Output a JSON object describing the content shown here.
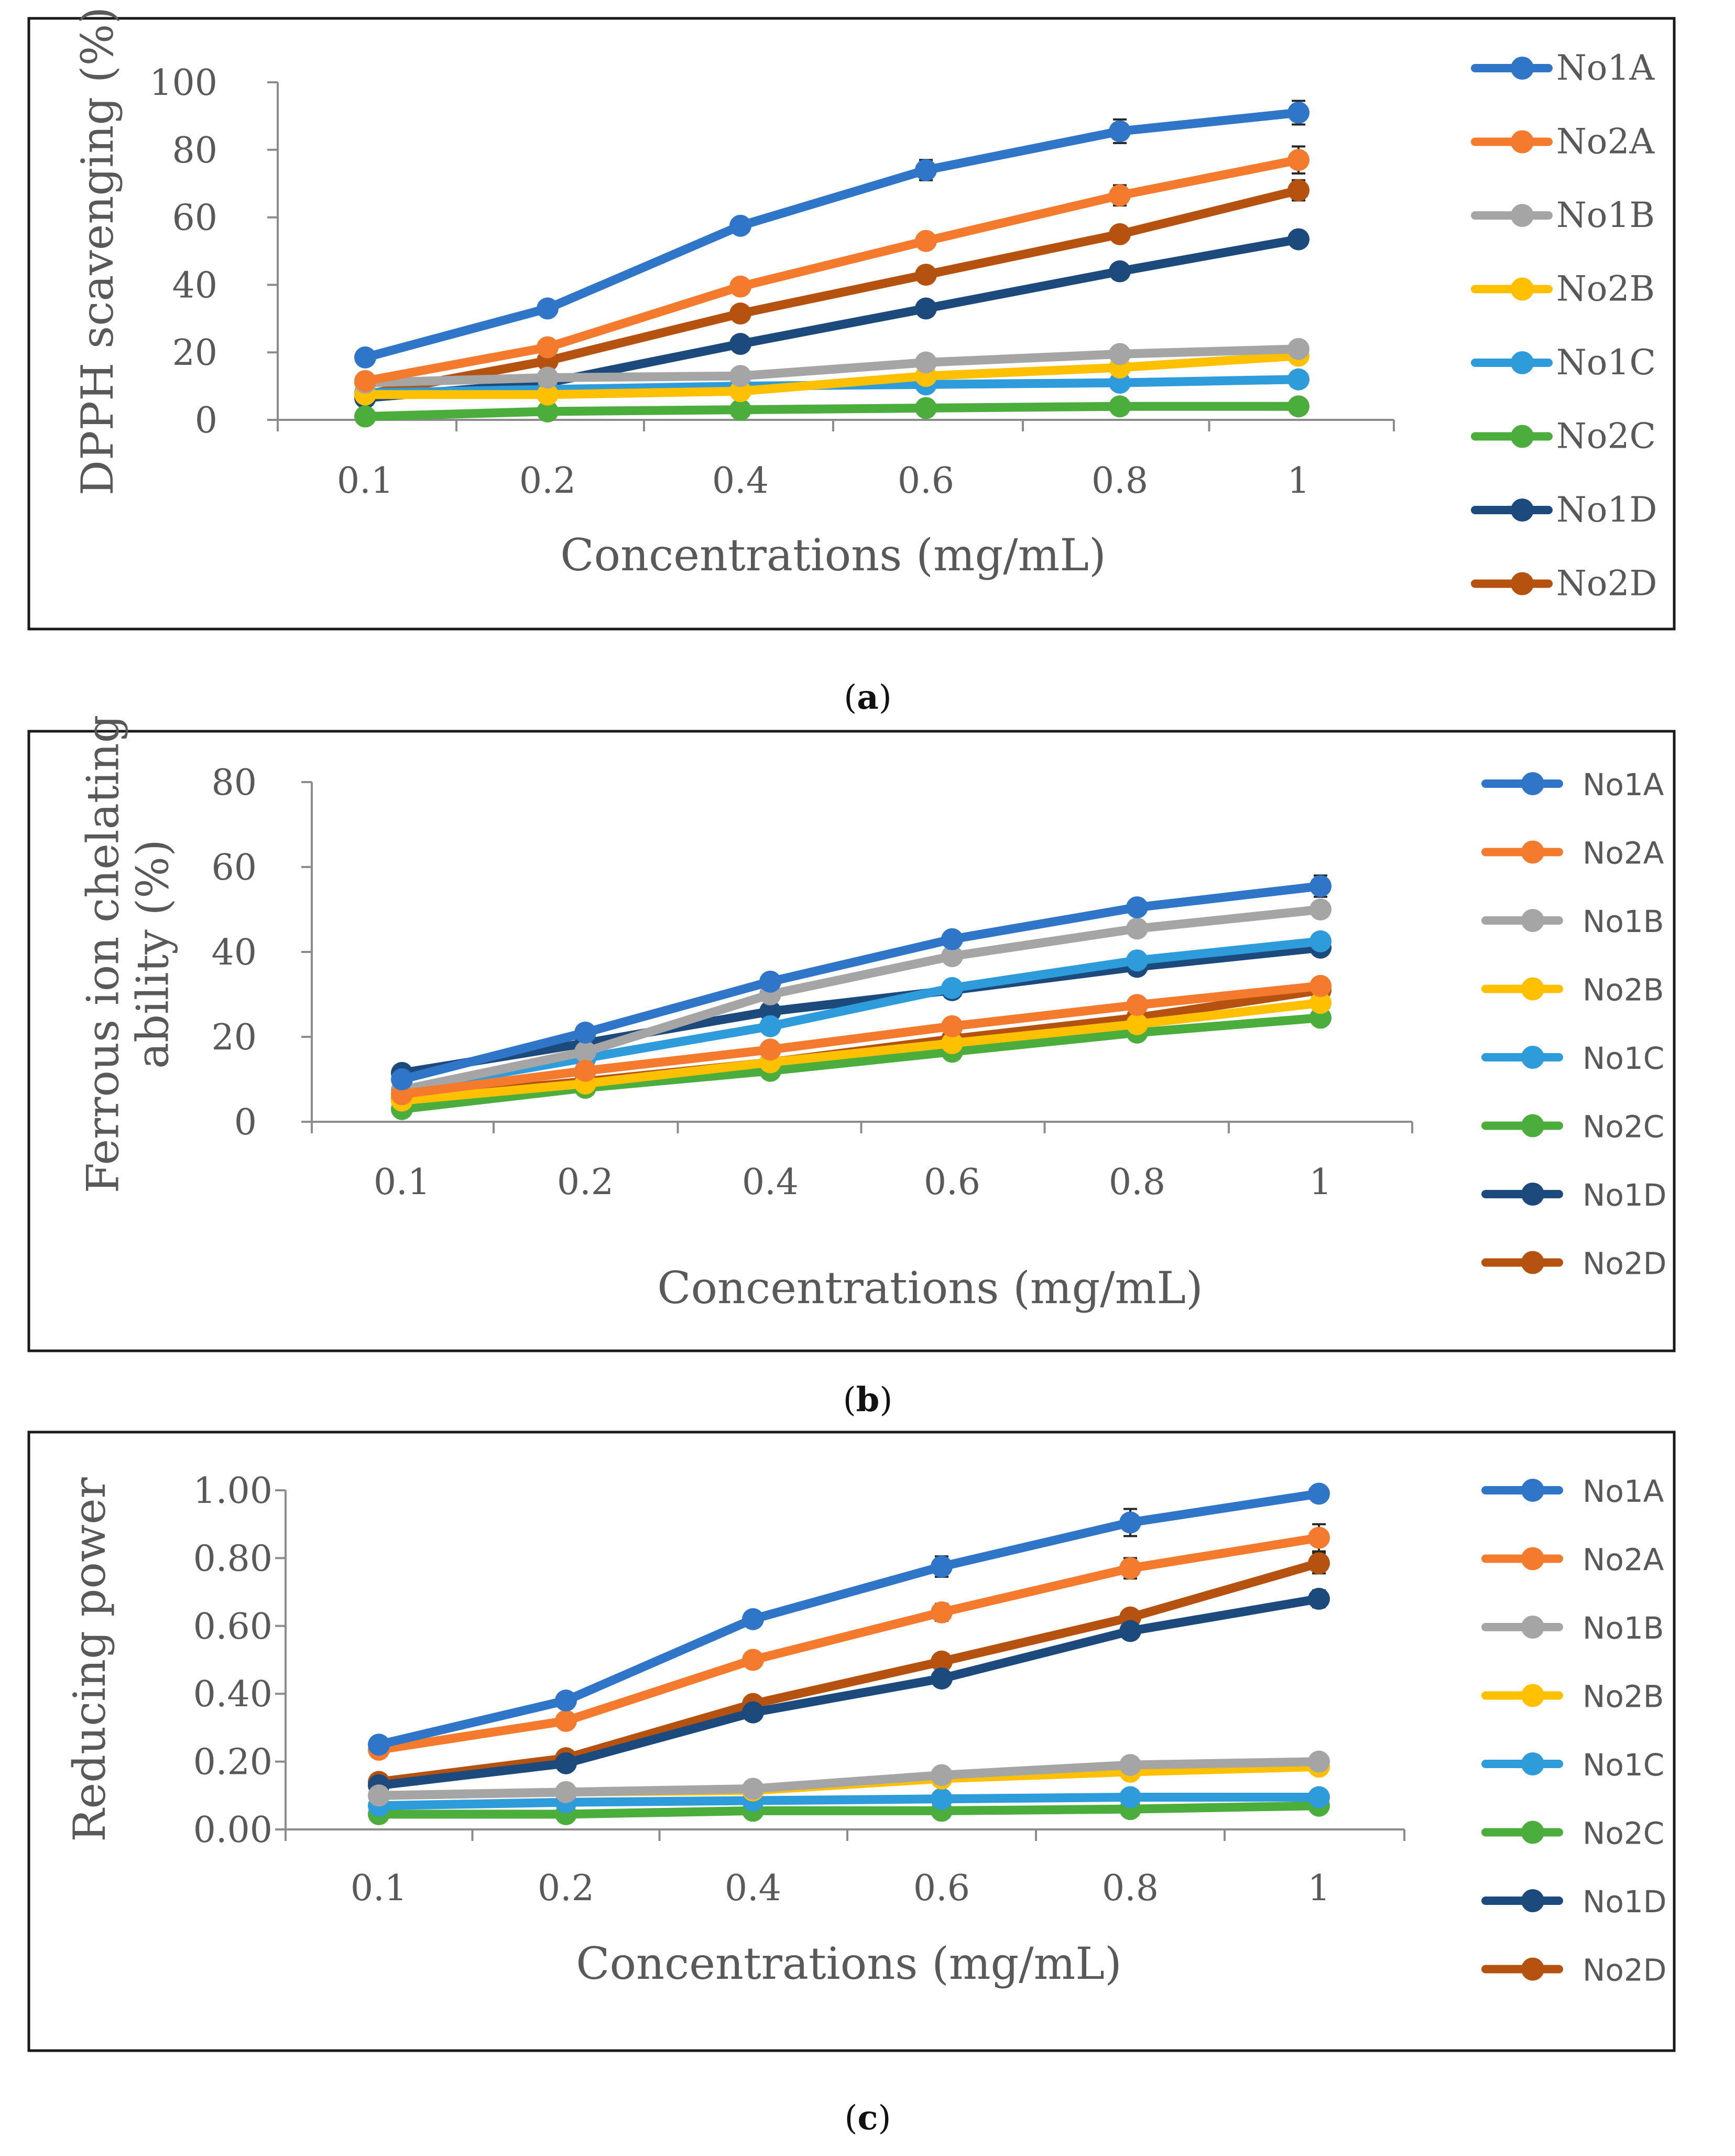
{
  "figure": {
    "panels": [
      {
        "label": "a",
        "label_open": "(",
        "label_close": ")"
      },
      {
        "label": "b",
        "label_open": "(",
        "label_close": ")"
      },
      {
        "label": "c",
        "label_open": "(",
        "label_close": ")"
      }
    ]
  },
  "series_colors": {
    "No1A": "#2F75C8",
    "No2A": "#F47B2E",
    "No1B": "#A5A5A5",
    "No2B": "#FFC000",
    "No1C": "#2E9BDA",
    "No2C": "#4BAE3C",
    "No1D": "#1D4A7D",
    "No2D": "#B5520F"
  },
  "chart_data": [
    {
      "type": "line",
      "panel": "a",
      "ylabel": "DPPH scavenging (%)",
      "xlabel": "Concentrations (mg/mL)",
      "categories": [
        "0.1",
        "0.2",
        "0.4",
        "0.6",
        "0.8",
        "1"
      ],
      "ylim": [
        0,
        100
      ],
      "yticks": [
        0,
        20,
        40,
        60,
        80,
        100
      ],
      "ytick_labels": [
        "0",
        "20",
        "40",
        "60",
        "80",
        "100"
      ],
      "grid": false,
      "legend_position": "right",
      "series": [
        {
          "name": "No1A",
          "values": [
            18.5,
            33,
            57.5,
            74,
            85.5,
            91
          ],
          "errors": [
            0,
            1,
            1.5,
            3,
            3.5,
            3.5
          ]
        },
        {
          "name": "No2A",
          "values": [
            11.5,
            21.5,
            39.5,
            53,
            66.5,
            77
          ],
          "errors": [
            0,
            0.5,
            1,
            1.5,
            3,
            4
          ]
        },
        {
          "name": "No1B",
          "values": [
            11,
            12.5,
            13,
            17,
            19.5,
            21
          ],
          "errors": [
            0,
            0,
            0,
            0.5,
            0.5,
            1
          ]
        },
        {
          "name": "No2B",
          "values": [
            7.5,
            7.5,
            8.5,
            13,
            15.5,
            19
          ],
          "errors": [
            0,
            0,
            0,
            0.5,
            0.5,
            1
          ]
        },
        {
          "name": "No1C",
          "values": [
            8,
            9,
            10,
            10.5,
            11,
            12
          ],
          "errors": [
            0,
            0,
            0,
            0,
            0,
            0.5
          ]
        },
        {
          "name": "No2C",
          "values": [
            1,
            2.5,
            3,
            3.5,
            4,
            4
          ],
          "errors": [
            0,
            0,
            0,
            0,
            0,
            0
          ]
        },
        {
          "name": "No1D",
          "values": [
            6.5,
            11,
            22.5,
            33,
            44,
            53.5
          ],
          "errors": [
            0,
            0.5,
            1,
            1,
            1.5,
            2
          ]
        },
        {
          "name": "No2D",
          "values": [
            7.5,
            17.5,
            31.5,
            43,
            55,
            68
          ],
          "errors": [
            0,
            0.5,
            1,
            1.5,
            2,
            3
          ]
        }
      ]
    },
    {
      "type": "line",
      "panel": "b",
      "ylabel": "Ferrous ion chelating ability (%)",
      "ylabel_lines": [
        "Ferrous ion chelating",
        "ability (%)"
      ],
      "xlabel": "Concentrations (mg/mL)",
      "categories": [
        "0.1",
        "0.2",
        "0.4",
        "0.6",
        "0.8",
        "1"
      ],
      "ylim": [
        0,
        80
      ],
      "yticks": [
        0,
        20,
        40,
        60,
        80
      ],
      "ytick_labels": [
        "0",
        "20",
        "40",
        "60",
        "80"
      ],
      "grid": false,
      "legend_position": "right",
      "series": [
        {
          "name": "No1A",
          "values": [
            10,
            21,
            33,
            43,
            50.5,
            55.5
          ],
          "errors": [
            0,
            0.5,
            0.5,
            1,
            1.5,
            2.5
          ]
        },
        {
          "name": "No2A",
          "values": [
            6.5,
            12,
            17,
            22.5,
            27.5,
            32
          ],
          "errors": [
            0,
            0.5,
            0.5,
            0.5,
            1,
            1
          ]
        },
        {
          "name": "No1B",
          "values": [
            7.5,
            16.5,
            30,
            39,
            45.5,
            50
          ],
          "errors": [
            0,
            0.5,
            0.5,
            1,
            1.5,
            1.5
          ]
        },
        {
          "name": "No2B",
          "values": [
            5,
            9,
            14,
            18.5,
            23,
            28
          ],
          "errors": [
            0,
            0,
            0.5,
            0.5,
            0.5,
            1
          ]
        },
        {
          "name": "No1C",
          "values": [
            7.5,
            15,
            22.5,
            31.5,
            38,
            42.5
          ],
          "errors": [
            0,
            0.5,
            0.5,
            1,
            1,
            1.5
          ]
        },
        {
          "name": "No2C",
          "values": [
            3,
            8,
            12,
            16.5,
            21,
            24.5
          ],
          "errors": [
            0,
            0,
            0,
            0.5,
            0.5,
            0.5
          ]
        },
        {
          "name": "No1D",
          "values": [
            11.5,
            18.5,
            26,
            31,
            36.5,
            41
          ],
          "errors": [
            0,
            0.5,
            0.5,
            0.5,
            1,
            1
          ]
        },
        {
          "name": "No2D",
          "values": [
            5.5,
            9.5,
            14,
            19.5,
            24.5,
            31
          ],
          "errors": [
            0,
            0,
            0.5,
            0.5,
            0.5,
            1
          ]
        }
      ]
    },
    {
      "type": "line",
      "panel": "c",
      "ylabel": "Reducing power",
      "xlabel": "Concentrations (mg/mL)",
      "categories": [
        "0.1",
        "0.2",
        "0.4",
        "0.6",
        "0.8",
        "1"
      ],
      "ylim": [
        0,
        1
      ],
      "yticks": [
        0,
        0.2,
        0.4,
        0.6,
        0.8,
        1
      ],
      "ytick_labels": [
        "0.00",
        "0.20",
        "0.40",
        "0.60",
        "0.80",
        "1.00"
      ],
      "grid": false,
      "legend_position": "right",
      "series": [
        {
          "name": "No1A",
          "values": [
            0.25,
            0.38,
            0.62,
            0.775,
            0.905,
            0.99
          ],
          "errors": [
            0,
            0.01,
            0.015,
            0.03,
            0.04,
            0.01
          ]
        },
        {
          "name": "No2A",
          "values": [
            0.235,
            0.32,
            0.5,
            0.64,
            0.77,
            0.86
          ],
          "errors": [
            0,
            0.01,
            0.01,
            0.025,
            0.03,
            0.04
          ]
        },
        {
          "name": "No1B",
          "values": [
            0.1,
            0.11,
            0.12,
            0.16,
            0.19,
            0.2
          ],
          "errors": [
            0,
            0,
            0,
            0.005,
            0.005,
            0.005
          ]
        },
        {
          "name": "No2B",
          "values": [
            0.1,
            0.11,
            0.115,
            0.15,
            0.17,
            0.185
          ],
          "errors": [
            0,
            0,
            0,
            0.005,
            0.005,
            0.005
          ]
        },
        {
          "name": "No1C",
          "values": [
            0.07,
            0.08,
            0.085,
            0.09,
            0.095,
            0.095
          ],
          "errors": [
            0,
            0,
            0,
            0,
            0,
            0
          ]
        },
        {
          "name": "No2C",
          "values": [
            0.045,
            0.045,
            0.055,
            0.055,
            0.06,
            0.07
          ],
          "errors": [
            0,
            0,
            0,
            0,
            0,
            0
          ]
        },
        {
          "name": "No1D",
          "values": [
            0.13,
            0.195,
            0.345,
            0.445,
            0.585,
            0.68
          ],
          "errors": [
            0,
            0.01,
            0.01,
            0.015,
            0.02,
            0.025
          ]
        },
        {
          "name": "No2D",
          "values": [
            0.14,
            0.21,
            0.37,
            0.495,
            0.625,
            0.785
          ],
          "errors": [
            0,
            0.01,
            0.01,
            0.015,
            0.02,
            0.03
          ]
        }
      ]
    }
  ]
}
